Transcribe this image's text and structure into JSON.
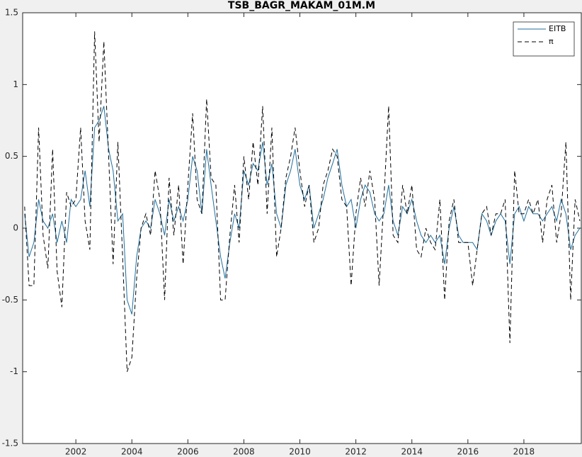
{
  "chart_data": {
    "type": "line",
    "title": "TSB_BAGR_MAKAM_01M.M",
    "x": [
      2000.17,
      2000.33,
      2000.5,
      2000.67,
      2000.83,
      2001,
      2001.17,
      2001.33,
      2001.5,
      2001.67,
      2001.83,
      2002,
      2002.17,
      2002.33,
      2002.5,
      2002.67,
      2002.83,
      2003,
      2003.17,
      2003.33,
      2003.5,
      2003.67,
      2003.83,
      2004,
      2004.17,
      2004.33,
      2004.5,
      2004.67,
      2004.83,
      2005,
      2005.17,
      2005.33,
      2005.5,
      2005.67,
      2005.83,
      2006,
      2006.17,
      2006.33,
      2006.5,
      2006.67,
      2006.83,
      2007,
      2007.17,
      2007.33,
      2007.5,
      2007.67,
      2007.83,
      2008,
      2008.17,
      2008.33,
      2008.5,
      2008.67,
      2008.83,
      2009,
      2009.17,
      2009.33,
      2009.5,
      2009.67,
      2009.83,
      2010,
      2010.17,
      2010.33,
      2010.5,
      2010.67,
      2010.83,
      2011,
      2011.17,
      2011.33,
      2011.5,
      2011.67,
      2011.83,
      2012,
      2012.17,
      2012.33,
      2012.5,
      2012.67,
      2012.83,
      2013,
      2013.17,
      2013.33,
      2013.5,
      2013.67,
      2013.83,
      2014,
      2014.17,
      2014.33,
      2014.5,
      2014.67,
      2014.83,
      2015,
      2015.17,
      2015.33,
      2015.5,
      2015.67,
      2015.83,
      2016,
      2016.17,
      2016.33,
      2016.5,
      2016.67,
      2016.83,
      2017,
      2017.17,
      2017.33,
      2017.5,
      2017.67,
      2017.83,
      2018,
      2018.17,
      2018.33,
      2018.5,
      2018.67,
      2018.83,
      2019,
      2019.17,
      2019.33,
      2019.5,
      2019.67,
      2019.83,
      2020
    ],
    "series": [
      {
        "name": "EITB",
        "color": "#1f6e9c",
        "dash": false,
        "values": [
          0.1,
          -0.2,
          -0.1,
          0.2,
          0.05,
          0.0,
          0.1,
          -0.1,
          0.05,
          -0.1,
          0.2,
          0.15,
          0.2,
          0.4,
          0.15,
          0.7,
          0.75,
          0.85,
          0.55,
          0.4,
          0.05,
          0.1,
          -0.5,
          -0.6,
          -0.2,
          0.0,
          0.05,
          0.0,
          0.2,
          0.1,
          -0.05,
          0.2,
          0.05,
          0.15,
          0.05,
          0.2,
          0.5,
          0.4,
          0.1,
          0.55,
          0.3,
          0.05,
          -0.2,
          -0.35,
          -0.1,
          0.1,
          0.0,
          0.4,
          0.3,
          0.45,
          0.4,
          0.6,
          0.3,
          0.45,
          0.1,
          0.0,
          0.3,
          0.4,
          0.55,
          0.3,
          0.2,
          0.3,
          0.0,
          0.1,
          0.2,
          0.35,
          0.45,
          0.55,
          0.3,
          0.15,
          0.2,
          0.0,
          0.2,
          0.3,
          0.25,
          0.1,
          0.05,
          0.1,
          0.3,
          0.05,
          -0.05,
          0.15,
          0.1,
          0.2,
          0.05,
          -0.05,
          -0.1,
          -0.05,
          -0.1,
          -0.05,
          -0.25,
          0.0,
          0.15,
          -0.05,
          -0.1,
          -0.1,
          -0.1,
          -0.15,
          0.1,
          0.05,
          -0.05,
          0.05,
          0.1,
          0.05,
          -0.25,
          0.1,
          0.15,
          0.05,
          0.15,
          0.1,
          0.1,
          0.05,
          0.1,
          0.15,
          0.05,
          0.2,
          0.1,
          -0.15,
          -0.05,
          0.0
        ]
      },
      {
        "name": "π",
        "color": "#000000",
        "dash": true,
        "values": [
          0.15,
          -0.4,
          -0.4,
          0.7,
          -0.05,
          -0.28,
          0.55,
          -0.3,
          -0.55,
          0.25,
          0.15,
          0.2,
          0.7,
          0.05,
          -0.15,
          1.37,
          0.6,
          1.3,
          0.5,
          -0.25,
          0.6,
          -0.2,
          -1.0,
          -0.9,
          -0.35,
          0.0,
          0.1,
          -0.05,
          0.4,
          0.2,
          -0.5,
          0.35,
          -0.05,
          0.3,
          -0.25,
          0.3,
          0.8,
          0.2,
          0.1,
          0.9,
          0.35,
          0.3,
          -0.5,
          -0.5,
          -0.05,
          0.3,
          -0.1,
          0.5,
          0.2,
          0.6,
          0.3,
          0.85,
          0.1,
          0.7,
          -0.2,
          0.0,
          0.35,
          0.5,
          0.7,
          0.4,
          0.15,
          0.3,
          -0.1,
          0.0,
          0.3,
          0.4,
          0.55,
          0.5,
          0.2,
          0.15,
          -0.4,
          0.1,
          0.35,
          0.15,
          0.4,
          0.2,
          -0.4,
          0.2,
          0.85,
          -0.05,
          -0.1,
          0.3,
          0.1,
          0.3,
          -0.15,
          -0.2,
          0.0,
          -0.1,
          -0.15,
          0.2,
          -0.5,
          0.05,
          0.2,
          -0.1,
          -0.1,
          -0.1,
          -0.4,
          -0.15,
          0.1,
          0.15,
          -0.05,
          0.1,
          0.1,
          0.2,
          -0.8,
          0.4,
          0.1,
          0.1,
          0.2,
          0.1,
          0.2,
          -0.1,
          0.2,
          0.3,
          -0.1,
          0.1,
          0.6,
          -0.5,
          0.2,
          0.05
        ]
      }
    ],
    "xlim": [
      2000.1,
      2020.05
    ],
    "xticks": [
      2002,
      2004,
      2006,
      2008,
      2010,
      2012,
      2014,
      2016,
      2018
    ],
    "ylim": [
      -1.5,
      1.5
    ],
    "yticks": [
      -1.5,
      -1,
      -0.5,
      0,
      0.5,
      1,
      1.5
    ],
    "grid": false,
    "legend": "northeast"
  }
}
